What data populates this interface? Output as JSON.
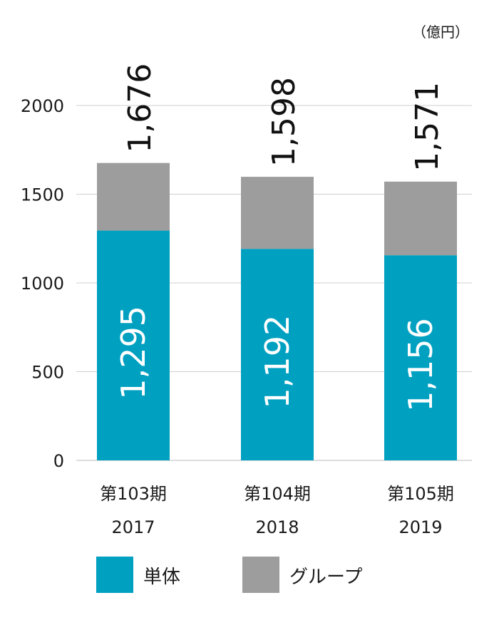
{
  "chart_data": {
    "type": "bar",
    "stacked": true,
    "unit": "（億円）",
    "categories": [
      {
        "period": "第103期",
        "year": "2017"
      },
      {
        "period": "第104期",
        "year": "2018"
      },
      {
        "period": "第105期",
        "year": "2019"
      }
    ],
    "series": [
      {
        "name": "単体",
        "color": "#00a0c1",
        "values": [
          1295,
          1192,
          1156
        ]
      },
      {
        "name": "グループ",
        "color": "#9d9d9d",
        "values": [
          381,
          406,
          415
        ]
      }
    ],
    "totals": [
      1676,
      1598,
      1571
    ],
    "total_labels": [
      "1,676",
      "1,598",
      "1,571"
    ],
    "segment_labels": [
      "1,295",
      "1,192",
      "1,156"
    ],
    "yticks": [
      0,
      500,
      1000,
      1500,
      2000
    ],
    "ylim": [
      0,
      2000
    ],
    "grid": true,
    "legend": "bottom"
  }
}
